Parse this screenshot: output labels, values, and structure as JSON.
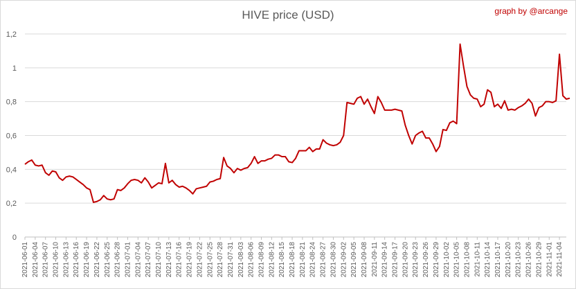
{
  "chart_data": {
    "type": "line",
    "title": "HIVE price (USD)",
    "credit": "graph by @arcange",
    "xlabel": "",
    "ylabel": "",
    "ylim": [
      0,
      1.2
    ],
    "yticks": [
      "0",
      "0,2",
      "0,4",
      "0,6",
      "0,8",
      "1",
      "1,2"
    ],
    "grid": true,
    "line_color": "#c00000",
    "x_start": "2021-06-01",
    "x_end": "2021-11-06",
    "x_tick_labels": [
      "2021-06-01",
      "2021-06-04",
      "2021-06-07",
      "2021-06-10",
      "2021-06-13",
      "2021-06-16",
      "2021-06-19",
      "2021-06-22",
      "2021-06-25",
      "2021-06-28",
      "2021-07-01",
      "2021-07-04",
      "2021-07-07",
      "2021-07-10",
      "2021-07-13",
      "2021-07-16",
      "2021-07-19",
      "2021-07-22",
      "2021-07-25",
      "2021-07-28",
      "2021-07-31",
      "2021-08-03",
      "2021-08-06",
      "2021-08-09",
      "2021-08-12",
      "2021-08-15",
      "2021-08-18",
      "2021-08-21",
      "2021-08-24",
      "2021-08-27",
      "2021-08-30",
      "2021-09-02",
      "2021-09-05",
      "2021-09-08",
      "2021-09-11",
      "2021-09-14",
      "2021-09-17",
      "2021-09-20",
      "2021-09-23",
      "2021-09-26",
      "2021-09-29",
      "2021-10-02",
      "2021-10-05",
      "2021-10-08",
      "2021-10-11",
      "2021-10-14",
      "2021-10-17",
      "2021-10-20",
      "2021-10-23",
      "2021-10-26",
      "2021-10-29",
      "2021-11-01",
      "2021-11-04"
    ],
    "series": [
      {
        "values": [
          0.43,
          0.445,
          0.455,
          0.425,
          0.42,
          0.425,
          0.38,
          0.365,
          0.39,
          0.385,
          0.35,
          0.335,
          0.355,
          0.36,
          0.355,
          0.34,
          0.325,
          0.31,
          0.29,
          0.28,
          0.205,
          0.21,
          0.22,
          0.245,
          0.225,
          0.22,
          0.225,
          0.28,
          0.275,
          0.29,
          0.315,
          0.335,
          0.34,
          0.335,
          0.32,
          0.35,
          0.325,
          0.29,
          0.305,
          0.32,
          0.315,
          0.435,
          0.32,
          0.335,
          0.31,
          0.295,
          0.3,
          0.29,
          0.275,
          0.255,
          0.285,
          0.29,
          0.295,
          0.3,
          0.325,
          0.33,
          0.34,
          0.345,
          0.47,
          0.42,
          0.405,
          0.38,
          0.405,
          0.395,
          0.405,
          0.41,
          0.435,
          0.475,
          0.435,
          0.45,
          0.45,
          0.46,
          0.465,
          0.485,
          0.485,
          0.475,
          0.475,
          0.445,
          0.44,
          0.465,
          0.51,
          0.51,
          0.51,
          0.53,
          0.505,
          0.52,
          0.52,
          0.575,
          0.555,
          0.545,
          0.54,
          0.545,
          0.56,
          0.6,
          0.795,
          0.79,
          0.785,
          0.82,
          0.83,
          0.785,
          0.815,
          0.77,
          0.73,
          0.83,
          0.795,
          0.75,
          0.75,
          0.75,
          0.755,
          0.75,
          0.745,
          0.66,
          0.6,
          0.55,
          0.6,
          0.615,
          0.625,
          0.585,
          0.585,
          0.55,
          0.505,
          0.535,
          0.635,
          0.63,
          0.675,
          0.685,
          0.67,
          1.14,
          1.01,
          0.89,
          0.84,
          0.82,
          0.815,
          0.77,
          0.785,
          0.87,
          0.855,
          0.77,
          0.785,
          0.76,
          0.805,
          0.75,
          0.755,
          0.75,
          0.765,
          0.775,
          0.79,
          0.815,
          0.79,
          0.715,
          0.765,
          0.775,
          0.8,
          0.8,
          0.795,
          0.805,
          1.08,
          0.835,
          0.815,
          0.82
        ]
      }
    ]
  }
}
